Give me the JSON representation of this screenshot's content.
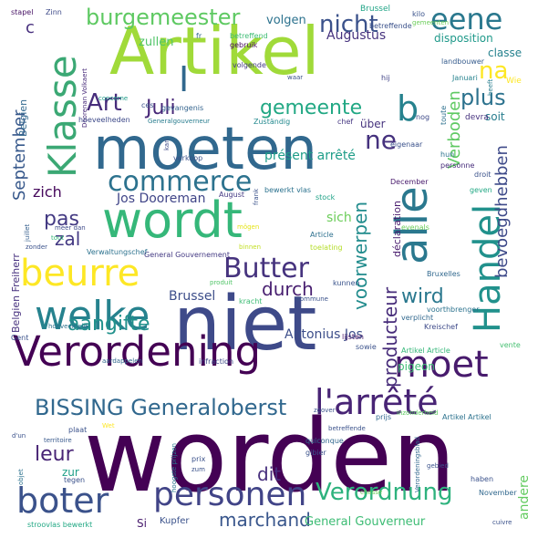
{
  "words": [
    {
      "text": "worden",
      "color": "#440154"
    },
    {
      "text": "niet",
      "color": "#3e4a89"
    },
    {
      "text": "Artikel",
      "color": "#a0da39"
    },
    {
      "text": "moeten",
      "color": "#31688e"
    },
    {
      "text": "wordt",
      "color": "#35b779"
    },
    {
      "text": "Verordening",
      "color": "#440154"
    },
    {
      "text": "alle",
      "color": "#2a788e"
    },
    {
      "text": "Handel",
      "color": "#21918c"
    },
    {
      "text": "welke",
      "color": "#26828e"
    },
    {
      "text": "Klasse",
      "color": "#3ba874"
    },
    {
      "text": "beurre",
      "color": "#fde725"
    },
    {
      "text": "boter",
      "color": "#3b528b"
    },
    {
      "text": "moet",
      "color": "#481b6d"
    },
    {
      "text": "personen",
      "color": "#414487"
    },
    {
      "text": "l'arrêté",
      "color": "#482475"
    },
    {
      "text": "commerce",
      "color": "#2c728e"
    },
    {
      "text": "Butter",
      "color": "#46337e"
    },
    {
      "text": "eene",
      "color": "#2a788e"
    },
    {
      "text": "I",
      "color": "#31688e"
    },
    {
      "text": "Art",
      "color": "#472d7b"
    },
    {
      "text": "Juli",
      "color": "#482878"
    },
    {
      "text": "burgemeester",
      "color": "#5ec962"
    },
    {
      "text": "nicht",
      "color": "#3b528b"
    },
    {
      "text": "BISSING Generaloberst",
      "color": "#31688e"
    },
    {
      "text": "Verordnung",
      "color": "#2db27d"
    },
    {
      "text": "aangifte",
      "color": "#21918c"
    },
    {
      "text": "voorwerpen",
      "color": "#228c8d"
    },
    {
      "text": "gemeente",
      "color": "#22a884"
    },
    {
      "text": "ne",
      "color": "#46327e"
    },
    {
      "text": "plus",
      "color": "#2c728e"
    },
    {
      "text": "b",
      "color": "#26828e"
    },
    {
      "text": "na",
      "color": "#fde725"
    },
    {
      "text": "producteur",
      "color": "#472c7a"
    },
    {
      "text": "Verboden",
      "color": "#5ec962"
    },
    {
      "text": "bevoegdhebben",
      "color": "#3e4a89"
    },
    {
      "text": "wird",
      "color": "#2a788e"
    },
    {
      "text": "pas",
      "color": "#443a83"
    },
    {
      "text": "zal",
      "color": "#443983"
    },
    {
      "text": "leur",
      "color": "#482475"
    },
    {
      "text": "dit",
      "color": "#472f7d"
    },
    {
      "text": "durch",
      "color": "#481f70"
    },
    {
      "text": "zich",
      "color": "#46085c"
    },
    {
      "text": "marchand",
      "color": "#39568c"
    },
    {
      "text": "September",
      "color": "#38598c"
    },
    {
      "text": "Jos Dooreman",
      "color": "#404588"
    },
    {
      "text": "Antonius Jos",
      "color": "#3d4e8a"
    },
    {
      "text": "General Gouverneur",
      "color": "#3dbc74"
    },
    {
      "text": "Brussel",
      "color": "#3d4e8a"
    },
    {
      "text": "Augustus",
      "color": "#46327e"
    },
    {
      "text": "volgen",
      "color": "#2c728e"
    },
    {
      "text": "zullen",
      "color": "#52c569"
    },
    {
      "text": "disposition",
      "color": "#1f998a"
    },
    {
      "text": "classe",
      "color": "#26828e"
    },
    {
      "text": "sich",
      "color": "#6ccd5a"
    },
    {
      "text": "andere",
      "color": "#62cb5f"
    },
    {
      "text": "présent arrêté",
      "color": "#1f9e89"
    },
    {
      "text": "soit",
      "color": "#287d8e"
    },
    {
      "text": "pigeon",
      "color": "#3dbc74"
    },
    {
      "text": "Belgien Freiherr",
      "color": "#46307e"
    },
    {
      "text": "Belgien",
      "color": "#31688e"
    },
    {
      "text": "c",
      "color": "#472f7d"
    },
    {
      "text": "zur",
      "color": "#1fa088"
    },
    {
      "text": "Si",
      "color": "#481c6e"
    },
    {
      "text": "Kupfer",
      "color": "#3b528b"
    },
    {
      "text": "über",
      "color": "#46337e"
    },
    {
      "text": "déclaration",
      "color": "#481b6d"
    },
    {
      "text": "stapel",
      "color": "#471365"
    },
    {
      "text": "Zinn",
      "color": "#3e4a89"
    },
    {
      "text": "Brussel",
      "color": "#20a486"
    },
    {
      "text": "kilo",
      "color": "#3a538b"
    },
    {
      "text": "fr",
      "color": "#31688e"
    },
    {
      "text": "betreffend",
      "color": "#3dbc74"
    },
    {
      "text": "gebruik",
      "color": "#46085c"
    },
    {
      "text": "gemeenten",
      "color": "#6ccd5a"
    },
    {
      "text": "landbouwer",
      "color": "#365c8d"
    },
    {
      "text": "Wie",
      "color": "#fde725"
    },
    {
      "text": "betreffende",
      "color": "#3b528b"
    },
    {
      "text": "Januari",
      "color": "#26828e"
    },
    {
      "text": "Doorenan Volkaert",
      "color": "#472a7a"
    },
    {
      "text": "concerne",
      "color": "#1f9e89"
    },
    {
      "text": "hoeveelheden",
      "color": "#3e4a89"
    },
    {
      "text": "Generalgouverneur",
      "color": "#287c8e"
    },
    {
      "text": "gevangenis",
      "color": "#33638d"
    },
    {
      "text": "ces",
      "color": "#3b528b"
    },
    {
      "text": "volgende",
      "color": "#443a83"
    },
    {
      "text": "waar",
      "color": "#3b528b"
    },
    {
      "text": "hij",
      "color": "#414487"
    },
    {
      "text": "heeft",
      "color": "#287d8e"
    },
    {
      "text": "toute",
      "color": "#2d708e"
    },
    {
      "text": "nog",
      "color": "#3e4a89"
    },
    {
      "text": "devra",
      "color": "#46327e"
    },
    {
      "text": "chef",
      "color": "#453781"
    },
    {
      "text": "Zuständig",
      "color": "#23898e"
    },
    {
      "text": "verkoop",
      "color": "#3b528b"
    },
    {
      "text": "kan",
      "color": "#3e4c8a"
    },
    {
      "text": "eigenaar",
      "color": "#3b528b"
    },
    {
      "text": "hun",
      "color": "#2c728e"
    },
    {
      "text": "personne",
      "color": "#472d7b"
    },
    {
      "text": "droit",
      "color": "#3b528b"
    },
    {
      "text": "December",
      "color": "#481a6c"
    },
    {
      "text": "geven",
      "color": "#22a884"
    },
    {
      "text": "stock",
      "color": "#1fa287"
    },
    {
      "text": "frank",
      "color": "#3b528b"
    },
    {
      "text": "August",
      "color": "#443983"
    },
    {
      "text": "bewerkt vlas",
      "color": "#2c728e"
    },
    {
      "text": "evenals",
      "color": "#6ccd5a"
    },
    {
      "text": "Article",
      "color": "#2d708e"
    },
    {
      "text": "toelating",
      "color": "#b5de2b"
    },
    {
      "text": "mögen",
      "color": "#e5e419"
    },
    {
      "text": "binnen",
      "color": "#c2df23"
    },
    {
      "text": "General Gouvernement",
      "color": "#443a83"
    },
    {
      "text": "produit",
      "color": "#52c569"
    },
    {
      "text": "kracht",
      "color": "#3dbc74"
    },
    {
      "text": "commune",
      "color": "#3b528b"
    },
    {
      "text": "kunnen",
      "color": "#3a548c"
    },
    {
      "text": "Bruxelles",
      "color": "#31688e"
    },
    {
      "text": "voorthbrenger",
      "color": "#2c728e"
    },
    {
      "text": "verplicht",
      "color": "#31688e"
    },
    {
      "text": "Kreischef",
      "color": "#3e4a89"
    },
    {
      "text": "Artikel Article",
      "color": "#35b779"
    },
    {
      "text": "lijsten",
      "color": "#481769"
    },
    {
      "text": "sowie",
      "color": "#3b528b"
    },
    {
      "text": "vente",
      "color": "#44bf70"
    },
    {
      "text": "infraction",
      "color": "#3e4a89"
    },
    {
      "text": "aardappelen",
      "color": "#31688e"
    },
    {
      "text": "Gent",
      "color": "#3b528b"
    },
    {
      "text": "hoeveelheid",
      "color": "#2c728e"
    },
    {
      "text": "Verwaltungschef",
      "color": "#2c728e"
    },
    {
      "text": "zonder",
      "color": "#3b528b"
    },
    {
      "text": "meer dan",
      "color": "#3e4a89"
    },
    {
      "text": "juillet",
      "color": "#355f8d"
    },
    {
      "text": "tout",
      "color": "#35b779"
    },
    {
      "text": "zoover",
      "color": "#3b528b"
    },
    {
      "text": "inzonderheid",
      "color": "#5ec962"
    },
    {
      "text": "prijs",
      "color": "#31688e"
    },
    {
      "text": "Artikel Artikel",
      "color": "#2c728e"
    },
    {
      "text": "plaat",
      "color": "#3b528b"
    },
    {
      "text": "Wet",
      "color": "#fde725"
    },
    {
      "text": "betreffende",
      "color": "#3b528b"
    },
    {
      "text": "d'un",
      "color": "#3b528b"
    },
    {
      "text": "territoire",
      "color": "#38598c"
    },
    {
      "text": "objet",
      "color": "#2c728e"
    },
    {
      "text": "quiconque",
      "color": "#31688e"
    },
    {
      "text": "gibier",
      "color": "#3b528b"
    },
    {
      "text": "hoogste prijzen",
      "color": "#2a788e"
    },
    {
      "text": "Verordeningsblad",
      "color": "#31688e"
    },
    {
      "text": "gebied",
      "color": "#3b528b"
    },
    {
      "text": "prix",
      "color": "#3b528b"
    },
    {
      "text": "zum",
      "color": "#3b528b"
    },
    {
      "text": "tegen",
      "color": "#3b528b"
    },
    {
      "text": "haben",
      "color": "#3b528b"
    },
    {
      "text": "November",
      "color": "#31688e"
    },
    {
      "text": "chasse",
      "color": "#6ccd5a"
    },
    {
      "text": "stroovlas bewerkt",
      "color": "#22a884"
    },
    {
      "text": "cuivre",
      "color": "#3b528b"
    }
  ]
}
